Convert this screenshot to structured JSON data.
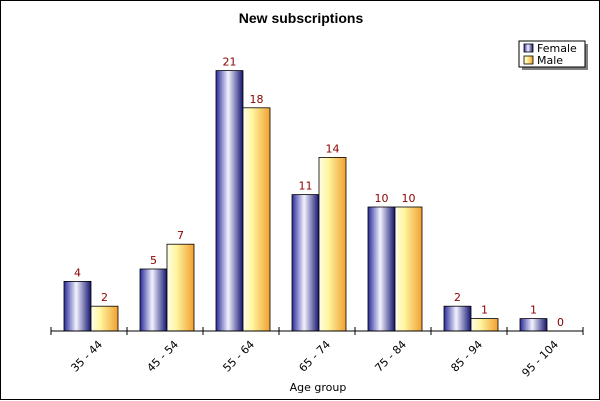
{
  "chart_data": {
    "type": "bar",
    "title": "New subscriptions",
    "xlabel": "Age group",
    "ylabel": "",
    "categories": [
      "35 - 44",
      "45 - 54",
      "55 - 64",
      "65 - 74",
      "75 - 84",
      "85 - 94",
      "95 - 104"
    ],
    "series": [
      {
        "name": "Female",
        "values": [
          4,
          5,
          21,
          11,
          10,
          2,
          1
        ],
        "color": "#3a3aa8"
      },
      {
        "name": "Male",
        "values": [
          2,
          7,
          18,
          14,
          10,
          1,
          0
        ],
        "color": "#f0a830"
      }
    ],
    "ylim": [
      0,
      22
    ],
    "grid": false,
    "legend_position": "top-right",
    "data_labels": true
  }
}
